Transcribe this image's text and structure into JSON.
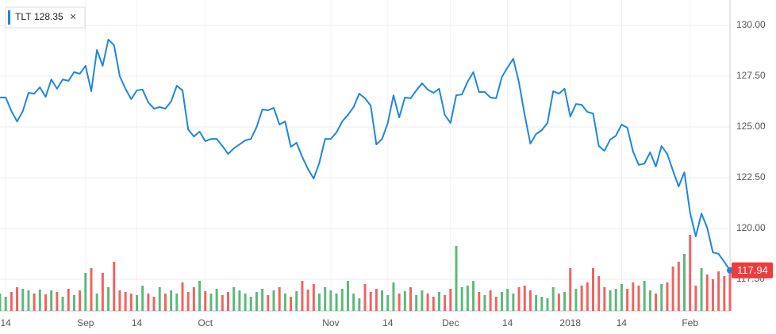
{
  "chart_data": {
    "type": "line",
    "categories": [
      null,
      "14",
      null,
      null,
      null,
      null,
      null,
      null,
      null,
      null,
      null,
      null,
      null,
      null,
      null,
      "Sep",
      null,
      null,
      null,
      null,
      null,
      null,
      null,
      null,
      "14",
      null,
      null,
      null,
      null,
      null,
      null,
      null,
      null,
      null,
      null,
      null,
      "Oct",
      null,
      null,
      null,
      null,
      null,
      null,
      null,
      null,
      null,
      null,
      null,
      null,
      null,
      null,
      null,
      null,
      null,
      null,
      null,
      null,
      null,
      "Nov",
      null,
      null,
      null,
      null,
      null,
      null,
      null,
      null,
      null,
      "14",
      null,
      null,
      null,
      null,
      null,
      null,
      null,
      null,
      null,
      null,
      "Dec",
      null,
      null,
      null,
      null,
      null,
      null,
      null,
      null,
      null,
      "14",
      null,
      null,
      null,
      null,
      null,
      null,
      null,
      null,
      null,
      null,
      "2018",
      null,
      null,
      null,
      null,
      null,
      null,
      null,
      null,
      "14",
      null,
      null,
      null,
      null,
      null,
      null,
      null,
      null,
      null,
      null,
      null,
      "Feb",
      null,
      null,
      null,
      null,
      null,
      null,
      null
    ],
    "series": [
      {
        "name": "TLT",
        "color": "#1e86e0",
        "values": [
          126.45,
          126.45,
          125.78,
          125.27,
          125.78,
          126.68,
          126.64,
          126.95,
          126.48,
          127.34,
          126.88,
          127.34,
          127.27,
          127.7,
          127.62,
          128.01,
          126.76,
          128.79,
          128.01,
          129.3,
          129.02,
          127.5,
          126.88,
          126.37,
          126.8,
          126.84,
          126.21,
          125.9,
          125.98,
          125.9,
          126.25,
          127.03,
          126.8,
          124.88,
          124.53,
          124.77,
          124.3,
          124.41,
          124.41,
          124.06,
          123.67,
          123.95,
          124.14,
          124.34,
          124.41,
          125.0,
          125.86,
          125.82,
          125.94,
          125.12,
          125.27,
          124.02,
          124.22,
          123.52,
          122.93,
          122.46,
          123.24,
          124.41,
          124.41,
          124.73,
          125.27,
          125.59,
          125.98,
          126.64,
          126.41,
          126.05,
          124.14,
          124.41,
          125.2,
          126.56,
          125.47,
          126.45,
          126.41,
          126.8,
          127.15,
          126.84,
          126.68,
          126.88,
          125.59,
          125.2,
          126.56,
          126.6,
          127.23,
          127.7,
          126.72,
          126.72,
          126.45,
          126.41,
          127.46,
          127.93,
          128.36,
          127.19,
          125.59,
          124.18,
          124.65,
          124.84,
          125.2,
          126.76,
          126.64,
          126.88,
          125.51,
          126.13,
          126.09,
          125.74,
          125.66,
          124.06,
          123.83,
          124.38,
          124.57,
          125.12,
          124.96,
          123.79,
          123.13,
          123.2,
          123.75,
          123.05,
          124.06,
          123.67,
          122.85,
          122.07,
          122.77,
          120.78,
          119.61,
          120.74,
          120.04,
          118.83,
          118.75,
          118.36,
          117.94
        ]
      }
    ],
    "legend_value": 128.35,
    "volume": {
      "up_color": "#5cb97a",
      "down_color": "#ef6461",
      "lim": [
        0,
        130
      ],
      "values": [
        22,
        18,
        24,
        30,
        28,
        26,
        22,
        27,
        21,
        26,
        24,
        18,
        28,
        20,
        26,
        48,
        54,
        22,
        48,
        30,
        62,
        26,
        24,
        22,
        20,
        32,
        22,
        18,
        30,
        22,
        26,
        22,
        36,
        24,
        30,
        38,
        25,
        22,
        28,
        20,
        24,
        30,
        26,
        22,
        18,
        24,
        28,
        20,
        26,
        30,
        22,
        18,
        25,
        38,
        27,
        34,
        22,
        30,
        26,
        22,
        28,
        38,
        22,
        16,
        34,
        24,
        28,
        26,
        20,
        36,
        22,
        25,
        30,
        20,
        26,
        22,
        18,
        24,
        20,
        28,
        82,
        30,
        32,
        38,
        24,
        20,
        26,
        18,
        24,
        28,
        22,
        30,
        32,
        26,
        20,
        18,
        16,
        30,
        22,
        24,
        54,
        28,
        32,
        36,
        54,
        44,
        30,
        26,
        28,
        34,
        28,
        36,
        32,
        38,
        26,
        22,
        34,
        36,
        56,
        62,
        72,
        96,
        32,
        54,
        46,
        40,
        50,
        44,
        48
      ]
    },
    "ylim": [
      115.94,
      131.25
    ],
    "yticks": [
      {
        "value": 117.5,
        "label": "117.50"
      },
      {
        "value": 120,
        "label": "120.00"
      },
      {
        "value": 122.5,
        "label": "122.50"
      },
      {
        "value": 125,
        "label": "125.00"
      },
      {
        "value": 127.5,
        "label": "127.50"
      },
      {
        "value": 130,
        "label": "130.00"
      }
    ],
    "grid": true
  }
}
